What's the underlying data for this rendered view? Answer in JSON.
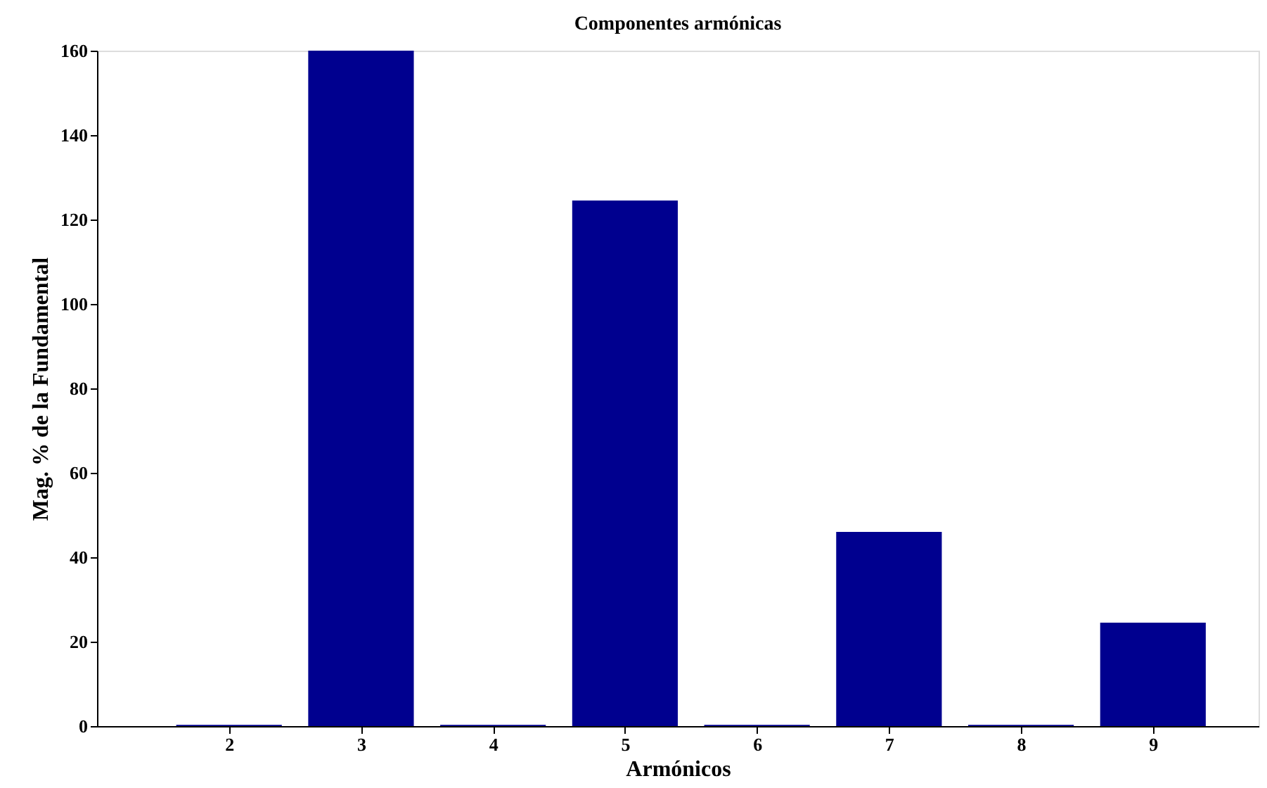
{
  "chart_data": {
    "type": "bar",
    "title": "Componentes armónicas",
    "xlabel": "Armónicos",
    "ylabel": "Mag. % de la Fundamental",
    "x": [
      2,
      3,
      4,
      5,
      6,
      7,
      8,
      9
    ],
    "values": [
      0.3,
      160,
      0.3,
      124.5,
      0.3,
      46,
      0.3,
      24.5
    ],
    "color": "#00008f",
    "xlim": [
      1,
      9.8
    ],
    "xticks": [
      2,
      3,
      4,
      5,
      6,
      7,
      8,
      9
    ],
    "ylim": [
      0,
      160
    ],
    "yticks": [
      0,
      20,
      40,
      60,
      80,
      100,
      120,
      140,
      160
    ],
    "grid": false
  }
}
